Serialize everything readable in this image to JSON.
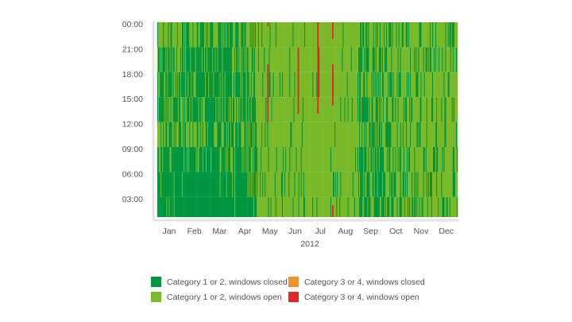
{
  "chart_data": {
    "type": "heatmap",
    "title": "",
    "xlabel": "2012",
    "ylabel": "",
    "x_ticks": [
      "Jan",
      "Feb",
      "Mar",
      "Apr",
      "May",
      "Jun",
      "Jul",
      "Aug",
      "Sep",
      "Oct",
      "Nov",
      "Dec"
    ],
    "y_ticks": [
      "00:00",
      "21:00",
      "18:00",
      "15:00",
      "12:00",
      "09:00",
      "06:00",
      "03:00"
    ],
    "year": 2012,
    "legend_position": "bottom",
    "categories": [
      {
        "key": "c12_closed",
        "label": "Category 1 or 2, windows closed",
        "color": "#00963f"
      },
      {
        "key": "c34_closed",
        "label": "Category 3 or 4, windows closed",
        "color": "#f39325"
      },
      {
        "key": "c12_open",
        "label": "Category 1 or 2, windows open",
        "color": "#7ab929"
      },
      {
        "key": "c34_open",
        "label": "Category 3 or 4, windows open",
        "color": "#e3262b"
      }
    ],
    "hour_blocks": [
      "21-24",
      "18-21",
      "15-18",
      "12-15",
      "09-12",
      "06-09",
      "03-06",
      "00-03"
    ],
    "share_windows_closed_by_month": [
      [
        0.55,
        0.6,
        0.55,
        0.5,
        0.15,
        0.1,
        0.03,
        0.05,
        0.4,
        0.35,
        0.25,
        0.2
      ],
      [
        0.6,
        0.75,
        0.75,
        0.55,
        0.12,
        0.08,
        0.03,
        0.05,
        0.45,
        0.35,
        0.25,
        0.2
      ],
      [
        0.65,
        0.8,
        0.8,
        0.6,
        0.1,
        0.08,
        0.03,
        0.05,
        0.45,
        0.4,
        0.25,
        0.2
      ],
      [
        0.6,
        0.75,
        0.75,
        0.55,
        0.1,
        0.08,
        0.03,
        0.05,
        0.5,
        0.4,
        0.25,
        0.2
      ],
      [
        0.5,
        0.6,
        0.65,
        0.5,
        0.1,
        0.08,
        0.03,
        0.05,
        0.55,
        0.4,
        0.25,
        0.2
      ],
      [
        0.75,
        0.8,
        0.8,
        0.65,
        0.15,
        0.12,
        0.05,
        0.12,
        0.6,
        0.45,
        0.3,
        0.2
      ],
      [
        0.9,
        0.98,
        0.98,
        0.85,
        0.2,
        0.15,
        0.05,
        0.15,
        0.65,
        0.5,
        0.3,
        0.2
      ],
      [
        0.9,
        0.98,
        0.98,
        0.85,
        0.2,
        0.15,
        0.05,
        0.15,
        0.65,
        0.5,
        0.35,
        0.25
      ]
    ],
    "windows_open_category_3_4_periods": [
      {
        "date": "2012-05-14",
        "from_hour": 12,
        "to_hour": 19
      },
      {
        "date": "2012-05-14",
        "from_hour": 23.5,
        "to_hour": 24
      },
      {
        "date": "2012-06-20",
        "from_hour": 13,
        "to_hour": 21
      },
      {
        "date": "2012-07-14",
        "from_hour": 13,
        "to_hour": 24
      },
      {
        "date": "2012-07-15",
        "from_hour": 15,
        "to_hour": 21
      },
      {
        "date": "2012-08-01",
        "from_hour": 14,
        "to_hour": 19
      },
      {
        "date": "2012-08-01",
        "from_hour": 22,
        "to_hour": 24
      },
      {
        "date": "2012-08-01",
        "from_hour": 0,
        "to_hour": 2
      }
    ]
  }
}
